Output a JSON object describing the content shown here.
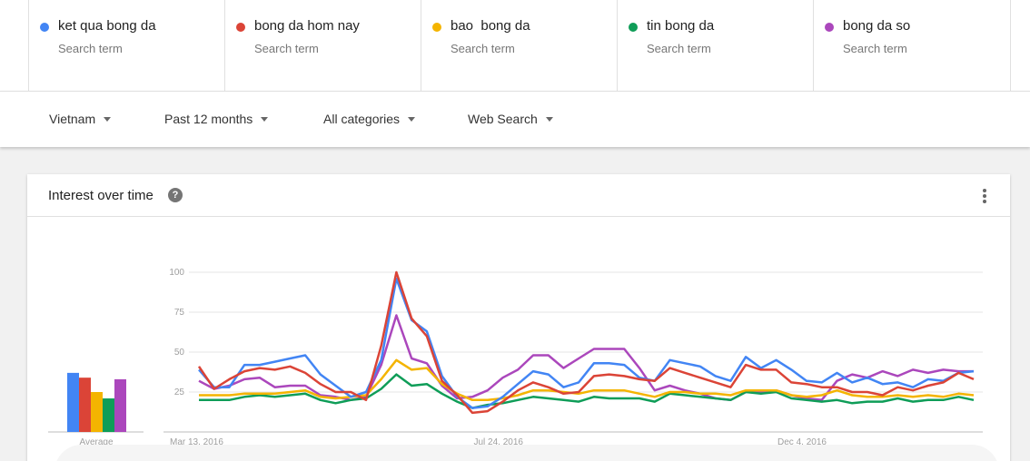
{
  "terms": [
    {
      "name": "ket qua bong da",
      "sub": "Search term",
      "color": "#4285f4"
    },
    {
      "name": "bong da hom nay",
      "sub": "Search term",
      "color": "#db4437"
    },
    {
      "name": "bao  bong da",
      "sub": "Search term",
      "color": "#f4b400"
    },
    {
      "name": "tin bong da",
      "sub": "Search term",
      "color": "#0f9d58"
    },
    {
      "name": "bong da so",
      "sub": "Search term",
      "color": "#ab47bc"
    }
  ],
  "filters": {
    "region": "Vietnam",
    "time": "Past 12 months",
    "category": "All categories",
    "search_type": "Web Search"
  },
  "card": {
    "title": "Interest over time",
    "help_icon": "help-icon",
    "more_icon": "more-vert-icon"
  },
  "chart_data": {
    "type": "line",
    "title": "Interest over time",
    "ylim": [
      0,
      100
    ],
    "yticks": [
      25,
      50,
      75,
      100
    ],
    "xlabels": [
      "Mar 13, 2016",
      "Jul 24, 2016",
      "Dec 4, 2016"
    ],
    "xlabel_index": [
      0,
      20,
      40
    ],
    "grid": true,
    "average": {
      "label": "Average",
      "values": [
        37,
        34,
        25,
        21,
        33
      ]
    },
    "series": [
      {
        "name": "ket qua bong da",
        "color": "#4285f4",
        "values": [
          39,
          28,
          28,
          42,
          42,
          44,
          46,
          48,
          36,
          29,
          22,
          25,
          45,
          96,
          70,
          63,
          35,
          22,
          15,
          16,
          22,
          30,
          38,
          36,
          28,
          31,
          43,
          43,
          42,
          34,
          32,
          45,
          43,
          41,
          35,
          32,
          47,
          40,
          45,
          39,
          32,
          31,
          37,
          31,
          34,
          30,
          31,
          28,
          33,
          32,
          37,
          38
        ]
      },
      {
        "name": "bong da hom nay",
        "color": "#db4437",
        "values": [
          41,
          27,
          33,
          38,
          40,
          39,
          41,
          37,
          30,
          25,
          25,
          20,
          54,
          100,
          71,
          60,
          32,
          23,
          12,
          13,
          19,
          26,
          31,
          28,
          24,
          25,
          35,
          36,
          35,
          33,
          32,
          40,
          37,
          34,
          31,
          28,
          42,
          39,
          39,
          31,
          30,
          28,
          28,
          25,
          25,
          23,
          28,
          26,
          29,
          31,
          37,
          33
        ]
      },
      {
        "name": "bao  bong da",
        "color": "#f4b400",
        "values": [
          23,
          23,
          23,
          24,
          24,
          24,
          25,
          26,
          22,
          21,
          22,
          23,
          33,
          45,
          39,
          40,
          30,
          24,
          20,
          20,
          21,
          23,
          26,
          26,
          25,
          24,
          26,
          26,
          26,
          24,
          22,
          25,
          25,
          24,
          24,
          23,
          26,
          26,
          26,
          23,
          22,
          23,
          26,
          23,
          22,
          22,
          23,
          22,
          23,
          22,
          24,
          23
        ]
      },
      {
        "name": "tin bong da",
        "color": "#0f9d58",
        "values": [
          20,
          20,
          20,
          22,
          23,
          22,
          23,
          24,
          20,
          18,
          20,
          21,
          27,
          36,
          29,
          30,
          24,
          19,
          15,
          17,
          18,
          20,
          22,
          21,
          20,
          19,
          22,
          21,
          21,
          21,
          19,
          24,
          23,
          22,
          21,
          20,
          25,
          24,
          25,
          21,
          20,
          19,
          20,
          18,
          19,
          19,
          21,
          19,
          20,
          20,
          22,
          20
        ]
      },
      {
        "name": "bong da so",
        "color": "#ab47bc",
        "values": [
          32,
          27,
          29,
          33,
          34,
          28,
          29,
          29,
          23,
          22,
          20,
          22,
          42,
          73,
          46,
          43,
          29,
          21,
          22,
          26,
          34,
          39,
          48,
          48,
          40,
          46,
          52,
          52,
          52,
          40,
          26,
          29,
          26,
          24,
          21,
          20,
          25,
          25,
          26,
          23,
          21,
          20,
          32,
          36,
          34,
          38,
          35,
          39,
          37,
          39,
          38,
          38
        ]
      }
    ]
  }
}
